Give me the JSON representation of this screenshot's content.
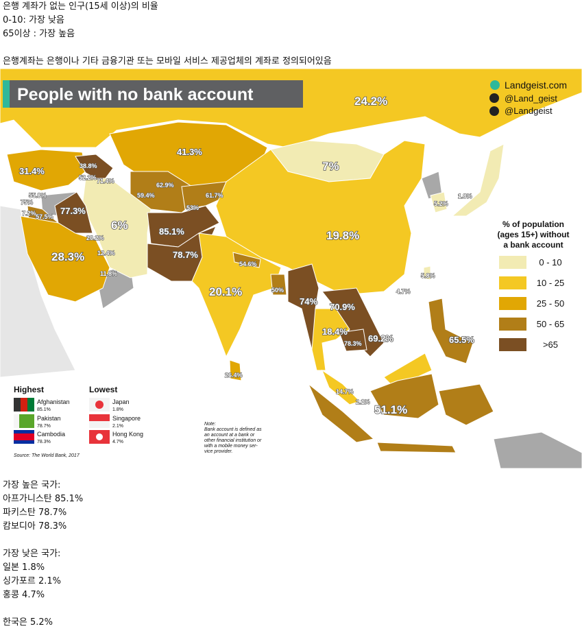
{
  "intro": {
    "lines": [
      "은행 계좌가 없는 인구(15세 이상)의 비율",
      "0-10: 가장 낮음",
      "65이상 : 가장 높음"
    ],
    "definition": "은행계좌는 은행이나 기타 금융기관 또는 모바일 서비스 제공업체의 계좌로 정의되어있음"
  },
  "map": {
    "title": "People with no bank account",
    "brand": {
      "site": "Landgeist.com",
      "instagram": "@Land_geist",
      "twitter": "@Landgeist"
    },
    "legend": {
      "title_lines": [
        "% of population",
        "(ages 15+) without",
        "a bank account"
      ],
      "bins": [
        {
          "label": "0 - 10",
          "color": "#f2ebb3"
        },
        {
          "label": "10 - 25",
          "color": "#f4c823"
        },
        {
          "label": "25 - 50",
          "color": "#e1a704"
        },
        {
          "label": "50 - 65",
          "color": "#b17e18"
        },
        {
          "label": ">65",
          "color": "#7b4f23"
        }
      ],
      "no_data_color": "#a8a8a8"
    },
    "labels": [
      "24.2%",
      "41.3%",
      "7%",
      "31.4%",
      "38.8%",
      "52.2%",
      "71.4%",
      "62.9%",
      "59.4%",
      "61.7%",
      "53%",
      "55.8%",
      "75%",
      "7.2%",
      "57.5%",
      "77.3%",
      "6%",
      "85.1%",
      "78.7%",
      "19.8%",
      "20.2%",
      "12.4%",
      "28.3%",
      "11.8%",
      "54.6%",
      "5.8%",
      "4.7%",
      "20.1%",
      "50%",
      "74%",
      "70.9%",
      "18.4%",
      "78.3%",
      "69.2%",
      "65.5%",
      "26.4%",
      "14.7%",
      "2.1%",
      "51.1%",
      "5.2%",
      "1.8%"
    ],
    "highest": {
      "title": "Highest",
      "items": [
        {
          "country": "Afghanistan",
          "value": "85.1%"
        },
        {
          "country": "Pakistan",
          "value": "78.7%"
        },
        {
          "country": "Cambodia",
          "value": "78.3%"
        }
      ]
    },
    "lowest": {
      "title": "Lowest",
      "items": [
        {
          "country": "Japan",
          "value": "1.8%"
        },
        {
          "country": "Singapore",
          "value": "2.1%"
        },
        {
          "country": "Hong Kong",
          "value": "4.7%"
        }
      ]
    },
    "source": "Source: The World Bank, 2017",
    "note": [
      "Note:",
      "Bank account is defined as",
      "an account at a bank or",
      "other financial institution or",
      "with a mobile money ser-",
      "vice provider."
    ]
  },
  "summary": {
    "highest_title": "가장 높은 국가:",
    "highest": [
      "아프가니스탄 85.1%",
      "파키스탄 78.7%",
      "캄보디아 78.3%"
    ],
    "lowest_title": "가장 낮은 국가:",
    "lowest": [
      "일본 1.8%",
      "싱가포르 2.1%",
      "홍콩 4.7%"
    ],
    "korea": "한국은 5.2%"
  }
}
